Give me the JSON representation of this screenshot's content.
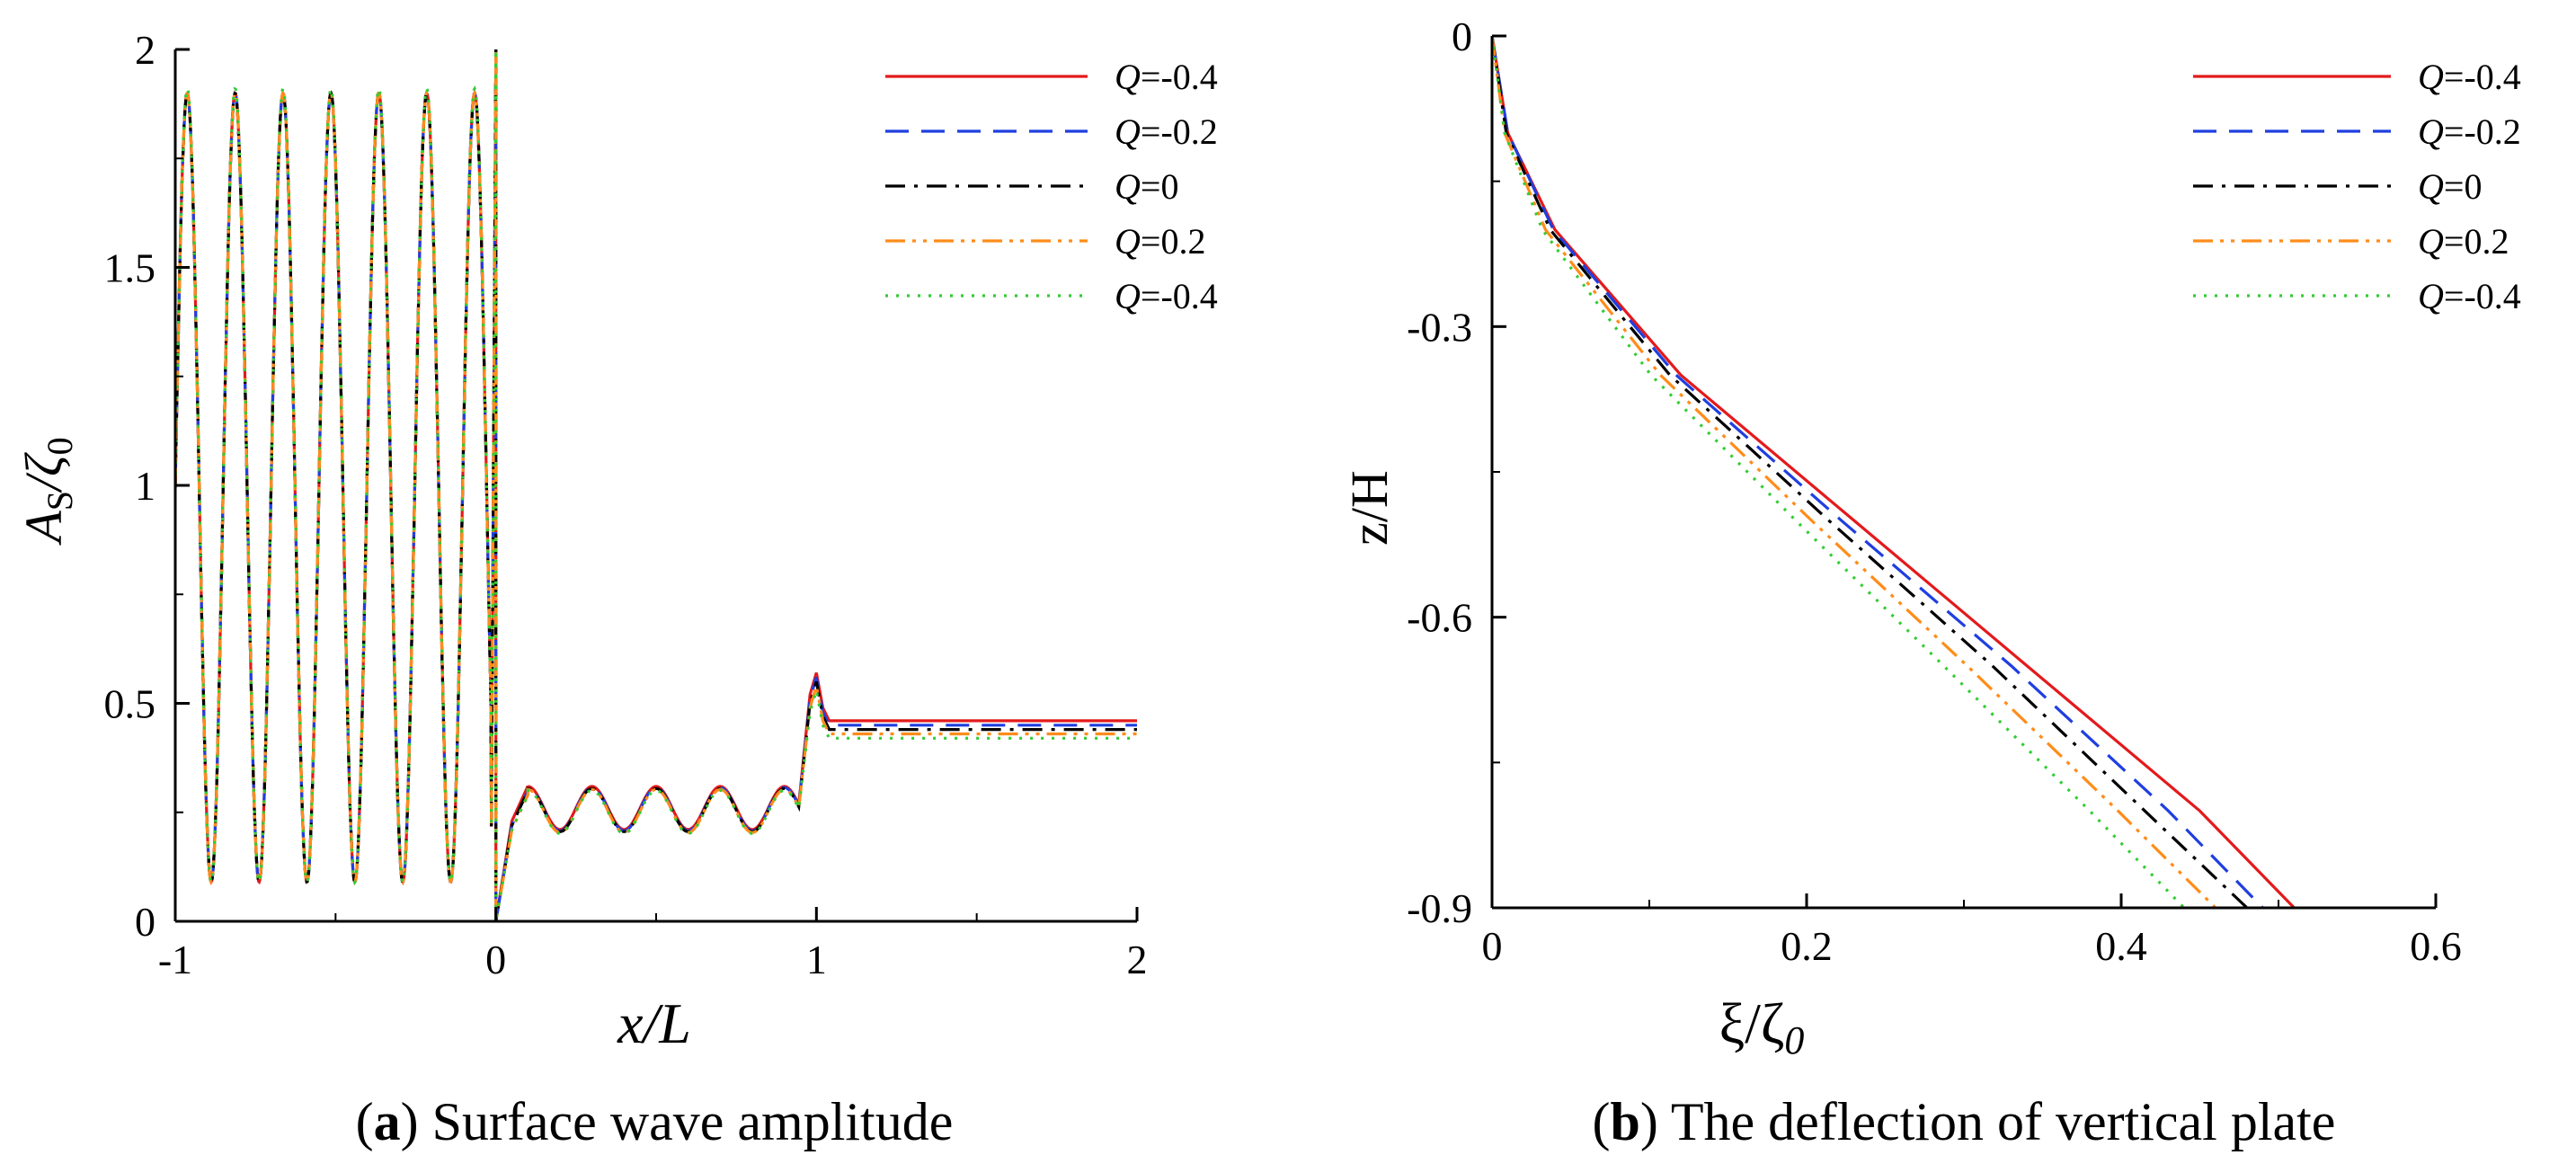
{
  "figure": {
    "caption_a": {
      "letter": "a",
      "text": "Surface wave amplitude"
    },
    "caption_b": {
      "letter": "b",
      "text": "The deflection of vertical plate"
    }
  },
  "colors": {
    "series": [
      "#e31a1c",
      "#1f3fe0",
      "#000000",
      "#ff8c1a",
      "#33cc33"
    ],
    "axes": "#000000"
  },
  "chart_data": [
    {
      "type": "line",
      "panel": "a",
      "title": "Surface wave amplitude",
      "xlabel_italic": "x/L",
      "ylabel": {
        "main": "A",
        "sub": "S",
        "rest": "/ζ",
        "sub2": "0"
      },
      "xlim": [
        -1,
        2
      ],
      "ylim": [
        0,
        2
      ],
      "xticks": [
        "-1",
        "0",
        "1",
        "2"
      ],
      "yticks": [
        "0",
        "0.5",
        "1",
        "1.5",
        "2"
      ],
      "legend_position": "top-right",
      "legend": [
        {
          "var": "Q",
          "label": "=-0.4",
          "dash": "solid"
        },
        {
          "var": "Q",
          "label": "=-0.2",
          "dash": "dashed"
        },
        {
          "var": "Q",
          "label": "=0",
          "dash": "dashdot"
        },
        {
          "var": "Q",
          "label": "=0.2",
          "dash": "dashdotdot"
        },
        {
          "var": "Q",
          "label": "=-0.4",
          "dash": "dotted"
        }
      ],
      "series": [
        {
          "name": "Q=-0.4",
          "upstream_period": 0.1494,
          "upstream_min": 0.09,
          "upstream_max": 1.9,
          "gap_points": [
            [
              0.0,
              0.0
            ],
            [
              0.05,
              0.23
            ],
            [
              0.1,
              0.31
            ]
          ],
          "gap_period": 0.2,
          "gap_mean": 0.265,
          "gap_amp": 0.055,
          "peak_at_1": 0.57,
          "downstream": 0.46
        },
        {
          "name": "Q=-0.2",
          "upstream_period": 0.1494,
          "upstream_min": 0.09,
          "upstream_max": 1.9,
          "gap_points": [
            [
              0.0,
              0.0
            ],
            [
              0.05,
              0.22
            ],
            [
              0.1,
              0.3
            ]
          ],
          "gap_period": 0.2,
          "gap_mean": 0.262,
          "gap_amp": 0.055,
          "peak_at_1": 0.56,
          "downstream": 0.45
        },
        {
          "name": "Q=0",
          "upstream_period": 0.1494,
          "upstream_min": 0.09,
          "upstream_max": 1.9,
          "gap_points": [
            [
              0.0,
              0.0
            ],
            [
              0.05,
              0.22
            ],
            [
              0.1,
              0.3
            ]
          ],
          "gap_period": 0.2,
          "gap_mean": 0.26,
          "gap_amp": 0.055,
          "peak_at_1": 0.55,
          "downstream": 0.44
        },
        {
          "name": "Q=0.2",
          "upstream_period": 0.1494,
          "upstream_min": 0.09,
          "upstream_max": 1.9,
          "gap_points": [
            [
              0.0,
              0.0
            ],
            [
              0.05,
              0.21
            ],
            [
              0.1,
              0.29
            ]
          ],
          "gap_period": 0.2,
          "gap_mean": 0.258,
          "gap_amp": 0.055,
          "peak_at_1": 0.54,
          "downstream": 0.43
        },
        {
          "name": "Q=-0.4",
          "upstream_period": 0.1494,
          "upstream_min": 0.09,
          "upstream_max": 1.91,
          "gap_points": [
            [
              0.0,
              0.0
            ],
            [
              0.05,
              0.21
            ],
            [
              0.1,
              0.29
            ]
          ],
          "gap_period": 0.2,
          "gap_mean": 0.256,
          "gap_amp": 0.055,
          "peak_at_1": 0.53,
          "downstream": 0.42
        }
      ]
    },
    {
      "type": "line",
      "panel": "b",
      "title": "The deflection of vertical plate",
      "xlabel": {
        "main": "ξ/ζ",
        "sub": "0"
      },
      "ylabel": "z/H",
      "xlim": [
        0,
        0.6
      ],
      "ylim": [
        -0.9,
        0
      ],
      "xticks": [
        "0",
        "0.2",
        "0.4",
        "0.6"
      ],
      "yticks": [
        "0",
        "-0.3",
        "-0.6",
        "-0.9"
      ],
      "legend_position": "top-right",
      "legend": [
        {
          "var": "Q",
          "label": "=-0.4",
          "dash": "solid"
        },
        {
          "var": "Q",
          "label": "=-0.2",
          "dash": "dashed"
        },
        {
          "var": "Q",
          "label": "=0",
          "dash": "dashdot"
        },
        {
          "var": "Q",
          "label": "=0.2",
          "dash": "dashdotdot"
        },
        {
          "var": "Q",
          "label": "=-0.4",
          "dash": "dotted"
        }
      ],
      "series": [
        {
          "name": "Q=-0.4",
          "points": [
            [
              0,
              0
            ],
            [
              0.01,
              -0.1
            ],
            [
              0.04,
              -0.2
            ],
            [
              0.12,
              -0.35
            ],
            [
              0.23,
              -0.5
            ],
            [
              0.34,
              -0.65
            ],
            [
              0.45,
              -0.8
            ],
            [
              0.51,
              -0.9
            ]
          ]
        },
        {
          "name": "Q=-0.2",
          "points": [
            [
              0,
              0
            ],
            [
              0.01,
              -0.1
            ],
            [
              0.039,
              -0.2
            ],
            [
              0.117,
              -0.35
            ],
            [
              0.222,
              -0.5
            ],
            [
              0.33,
              -0.65
            ],
            [
              0.43,
              -0.8
            ],
            [
              0.49,
              -0.9
            ]
          ]
        },
        {
          "name": "Q=0",
          "points": [
            [
              0,
              0
            ],
            [
              0.009,
              -0.1
            ],
            [
              0.037,
              -0.2
            ],
            [
              0.113,
              -0.35
            ],
            [
              0.214,
              -0.5
            ],
            [
              0.318,
              -0.65
            ],
            [
              0.415,
              -0.8
            ],
            [
              0.48,
              -0.9
            ]
          ]
        },
        {
          "name": "Q=0.2",
          "points": [
            [
              0,
              0
            ],
            [
              0.008,
              -0.1
            ],
            [
              0.034,
              -0.2
            ],
            [
              0.107,
              -0.35
            ],
            [
              0.203,
              -0.5
            ],
            [
              0.302,
              -0.65
            ],
            [
              0.398,
              -0.8
            ],
            [
              0.46,
              -0.9
            ]
          ]
        },
        {
          "name": "Q=-0.4",
          "points": [
            [
              0,
              0
            ],
            [
              0.008,
              -0.1
            ],
            [
              0.032,
              -0.2
            ],
            [
              0.101,
              -0.35
            ],
            [
              0.193,
              -0.5
            ],
            [
              0.287,
              -0.65
            ],
            [
              0.38,
              -0.8
            ],
            [
              0.44,
              -0.9
            ]
          ]
        }
      ]
    }
  ]
}
